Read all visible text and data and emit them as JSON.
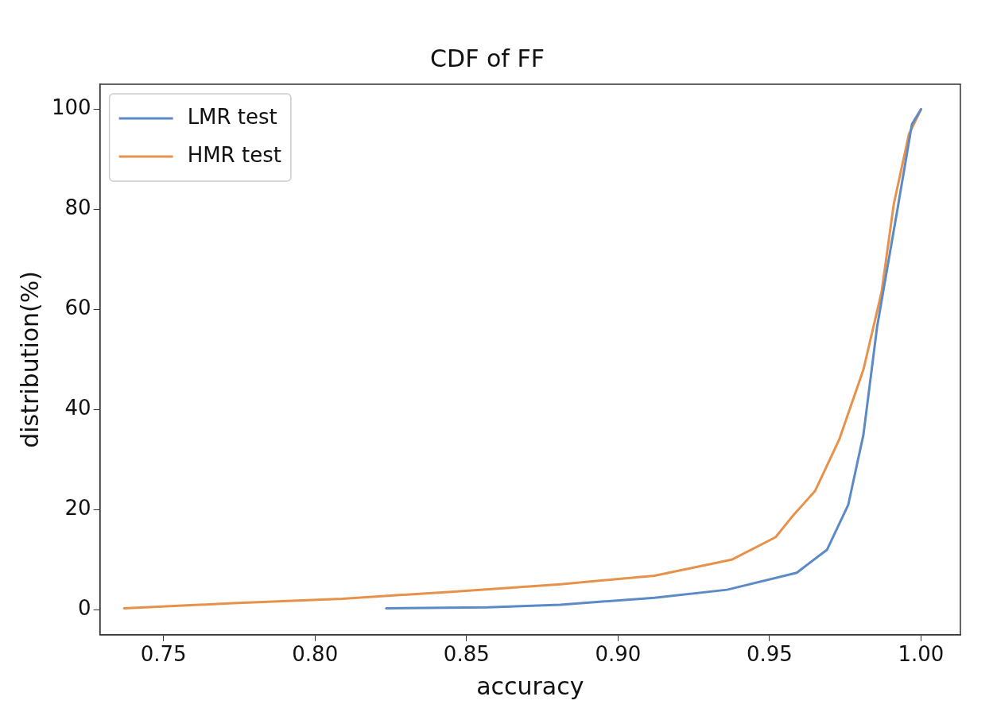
{
  "chart_data": {
    "type": "line",
    "title": "CDF of FF",
    "xlabel": "accuracy",
    "ylabel": "distribution(%)",
    "xlim": [
      0.729,
      1.013
    ],
    "ylim": [
      -5,
      105
    ],
    "xticks": [
      0.75,
      {
        "value": 0.8,
        "label": "0.80"
      },
      0.85,
      {
        "value": 0.9,
        "label": "0.90"
      },
      0.95,
      {
        "value": 1.0,
        "label": "1.00"
      }
    ],
    "yticks": [
      0,
      20,
      40,
      60,
      80,
      100
    ],
    "grid": false,
    "legend": "top left",
    "marker": "none",
    "line_style": "solid",
    "series": [
      {
        "name": "LMR test",
        "color": "#5b8ac6",
        "x": [
          0.8235,
          0.857,
          0.881,
          0.912,
          0.936,
          0.959,
          0.969,
          0.976,
          0.981,
          0.9855,
          0.9925,
          0.997,
          1.0
        ],
        "values": [
          0.3,
          0.5,
          1.0,
          2.4,
          4,
          7.4,
          12,
          21,
          35,
          56.5,
          81,
          97,
          100
        ]
      },
      {
        "name": "HMR test",
        "color": "#e8914a",
        "x": [
          0.737,
          0.773,
          0.809,
          0.845,
          0.881,
          0.912,
          0.9375,
          0.952,
          0.958,
          0.965,
          0.973,
          0.981,
          0.987,
          0.991,
          0.996,
          1.0
        ],
        "values": [
          0.3,
          1.3,
          2.2,
          3.6,
          5.1,
          6.8,
          10,
          14.5,
          19,
          23.7,
          34,
          48,
          63.5,
          81,
          95,
          100
        ]
      }
    ]
  }
}
